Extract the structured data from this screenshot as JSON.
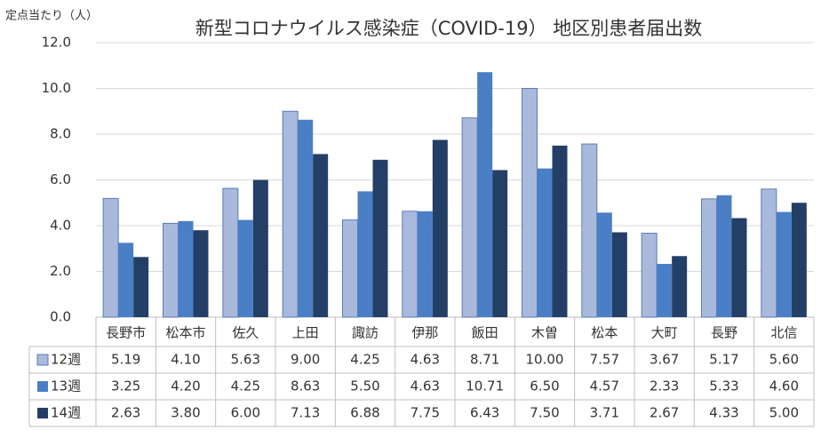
{
  "chart_data": {
    "type": "bar",
    "title": "新型コロナウイルス感染症（COVID-19） 地区別患者届出数",
    "y_label": "定点当たり（人）",
    "categories": [
      "長野市",
      "松本市",
      "佐久",
      "上田",
      "諏訪",
      "伊那",
      "飯田",
      "木曽",
      "松本",
      "大町",
      "長野",
      "北信"
    ],
    "series": [
      {
        "name": "12週",
        "color": "#a9b9dc",
        "values": [
          5.19,
          4.1,
          5.63,
          9,
          4.25,
          4.63,
          8.71,
          10,
          7.57,
          3.67,
          5.17,
          5.6
        ],
        "value_labels": [
          "5.19",
          "4.10",
          "5.63",
          "9.00",
          "4.25",
          "4.63",
          "8.71",
          "10.00",
          "7.57",
          "3.67",
          "5.17",
          "5.60"
        ]
      },
      {
        "name": "13週",
        "color": "#4a7fc5",
        "values": [
          3.25,
          4.2,
          4.25,
          8.63,
          5.5,
          4.63,
          10.71,
          6.5,
          4.57,
          2.33,
          5.33,
          4.6
        ],
        "value_labels": [
          "3.25",
          "4.20",
          "4.25",
          "8.63",
          "5.50",
          "4.63",
          "10.71",
          "6.50",
          "4.57",
          "2.33",
          "5.33",
          "4.60"
        ]
      },
      {
        "name": "14週",
        "color": "#243f66",
        "values": [
          2.63,
          3.8,
          6,
          7.13,
          6.88,
          7.75,
          6.43,
          7.5,
          3.71,
          2.67,
          4.33,
          5
        ],
        "value_labels": [
          "2.63",
          "3.80",
          "6.00",
          "7.13",
          "6.88",
          "7.75",
          "6.43",
          "7.50",
          "3.71",
          "2.67",
          "4.33",
          "5.00"
        ]
      }
    ],
    "ylim": [
      0,
      12
    ],
    "yticks": [
      {
        "value": 0,
        "label": "0.0"
      },
      {
        "value": 2,
        "label": "2.0"
      },
      {
        "value": 4,
        "label": "4.0"
      },
      {
        "value": 6,
        "label": "6.0"
      },
      {
        "value": 8,
        "label": "8.0"
      },
      {
        "value": 10,
        "label": "10.0"
      },
      {
        "value": 12,
        "label": "12.0"
      }
    ],
    "grid": true
  }
}
